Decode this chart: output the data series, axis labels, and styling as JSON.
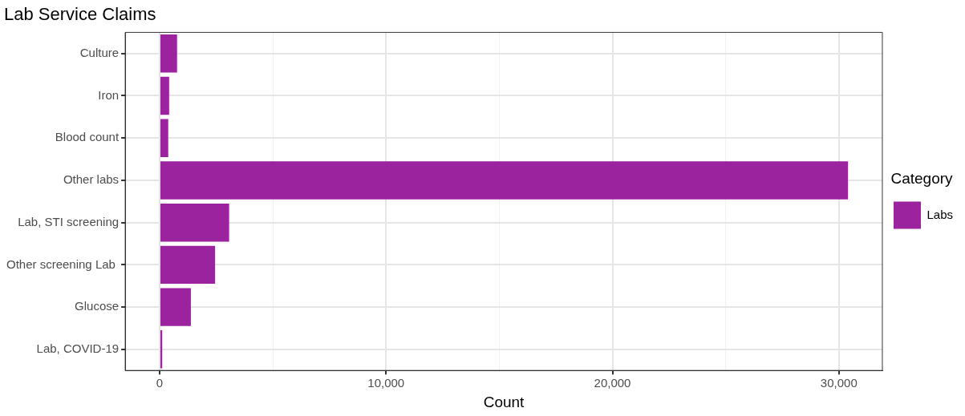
{
  "chart_data": {
    "type": "bar",
    "orientation": "horizontal",
    "title": "Lab Service Claims",
    "xlabel": "Count",
    "legend_title": "Category",
    "categories": [
      "Culture",
      "Iron",
      "Blood count",
      "Other labs",
      "Lab, STI screening",
      "Other screening Lab ",
      "Glucose",
      "Lab, COVID-19"
    ],
    "series": [
      {
        "name": "Labs",
        "color": "#9c239e",
        "values": [
          770,
          420,
          380,
          30400,
          3070,
          2450,
          1380,
          115
        ]
      }
    ],
    "xlim": [
      -1520,
      31920
    ],
    "xticks": [
      {
        "value": 0,
        "label": "0"
      },
      {
        "value": 5000,
        "label": null
      },
      {
        "value": 10000,
        "label": "10,000"
      },
      {
        "value": 15000,
        "label": null
      },
      {
        "value": 20000,
        "label": "20,000"
      },
      {
        "value": 25000,
        "label": null
      },
      {
        "value": 30000,
        "label": "30,000"
      }
    ],
    "grid": true,
    "legend": "right"
  }
}
